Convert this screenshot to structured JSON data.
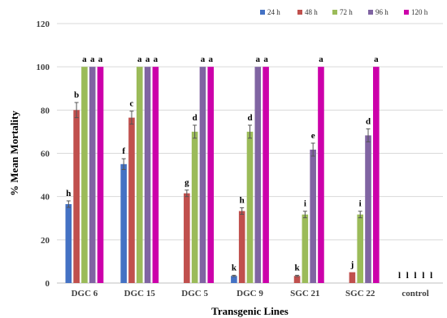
{
  "chart_data": {
    "type": "bar",
    "title": "",
    "xlabel": "Transgenic Lines",
    "ylabel": "% Mean Mortality",
    "ylim": [
      0,
      120
    ],
    "yticks": [
      0,
      20,
      40,
      60,
      80,
      100,
      120
    ],
    "grid": true,
    "legend_position": "top-right",
    "categories": [
      "DGC 6",
      "DGC 15",
      "DGC 5",
      "DGC 9",
      "SGC 21",
      "SGC 22",
      "control"
    ],
    "series": [
      {
        "name": "24 h",
        "color": "#4472c4",
        "values": [
          36.5,
          55,
          0,
          3.3,
          0,
          0,
          0
        ],
        "errors": [
          1.5,
          2.5,
          0,
          0.3,
          0,
          0,
          0
        ],
        "letters": [
          "h",
          "f",
          "",
          "k",
          "",
          "",
          "l"
        ]
      },
      {
        "name": "48 h",
        "color": "#c0504d",
        "values": [
          80,
          76.5,
          41.5,
          33.3,
          3.3,
          5,
          0
        ],
        "errors": [
          3.5,
          3,
          1.5,
          1.5,
          0.3,
          0,
          0
        ],
        "letters": [
          "b",
          "c",
          "g",
          "h",
          "k",
          "j",
          "l"
        ]
      },
      {
        "name": "72 h",
        "color": "#9bbb59",
        "values": [
          100,
          100,
          70,
          70,
          31.7,
          31.7,
          0
        ],
        "errors": [
          0,
          0,
          3,
          3,
          1.5,
          1.5,
          0
        ],
        "letters": [
          "a",
          "a",
          "d",
          "d",
          "i",
          "i",
          "l"
        ]
      },
      {
        "name": "96 h",
        "color": "#8064a2",
        "values": [
          100,
          100,
          100,
          100,
          61.7,
          68.3,
          0
        ],
        "errors": [
          0,
          0,
          0,
          0,
          3,
          3,
          0
        ],
        "letters": [
          "a",
          "a",
          "a",
          "a",
          "e",
          "d",
          "l"
        ]
      },
      {
        "name": "120 h",
        "color": "#cc00aa",
        "values": [
          100,
          100,
          100,
          100,
          100,
          100,
          0
        ],
        "errors": [
          0,
          0,
          0,
          0,
          0,
          0,
          0
        ],
        "letters": [
          "a",
          "a",
          "a",
          "a",
          "a",
          "a",
          "l"
        ]
      }
    ]
  }
}
